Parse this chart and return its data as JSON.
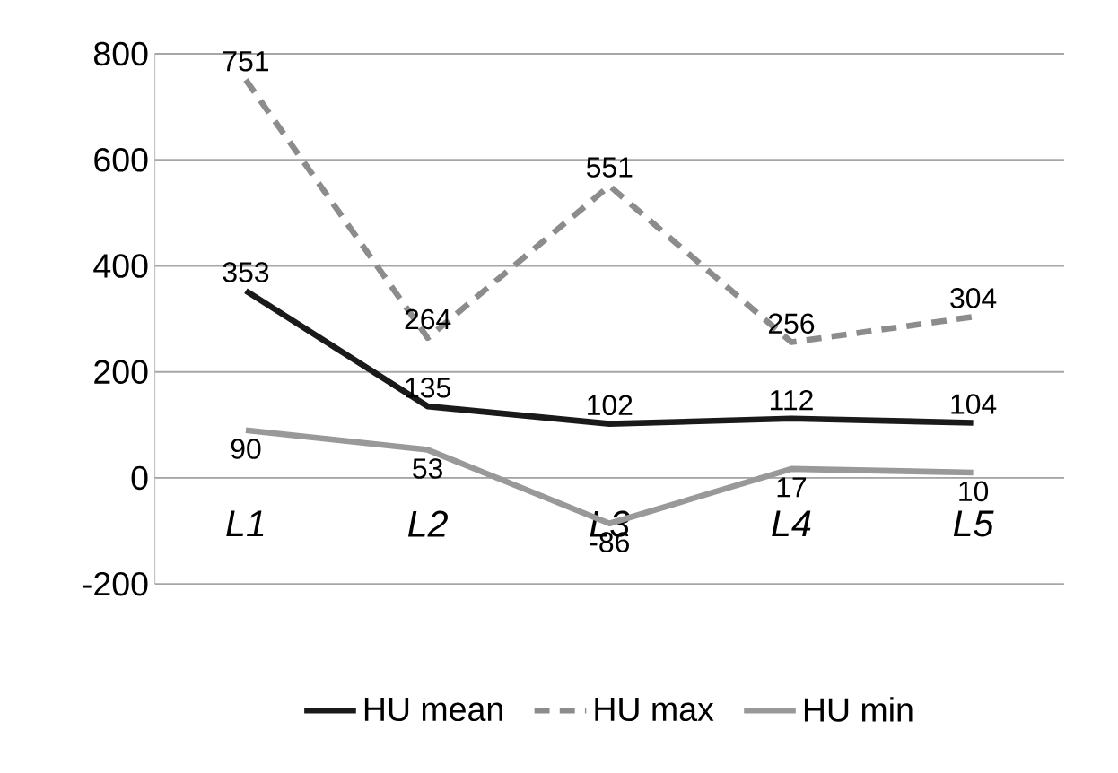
{
  "chart_data": {
    "type": "line",
    "categories": [
      "*L1*",
      "*L2*",
      "*L3*",
      "*L4*",
      "*L5*"
    ],
    "series": [
      {
        "name": "HU mean",
        "color": "#1a1a1a",
        "line_style": "solid",
        "values": [
          353,
          135,
          102,
          112,
          104
        ]
      },
      {
        "name": "HU max",
        "color": "#8c8c8c",
        "line_style": "dashed",
        "values": [
          751,
          264,
          551,
          256,
          304
        ]
      },
      {
        "name": "HU min",
        "color": "#999999",
        "line_style": "solid",
        "values": [
          90,
          53,
          -86,
          17,
          10
        ]
      }
    ],
    "ylim": [
      -200,
      800
    ],
    "yticks": [
      -200,
      0,
      200,
      400,
      600,
      800
    ],
    "grid": "y",
    "legend": "bottom",
    "data_labels": true
  }
}
